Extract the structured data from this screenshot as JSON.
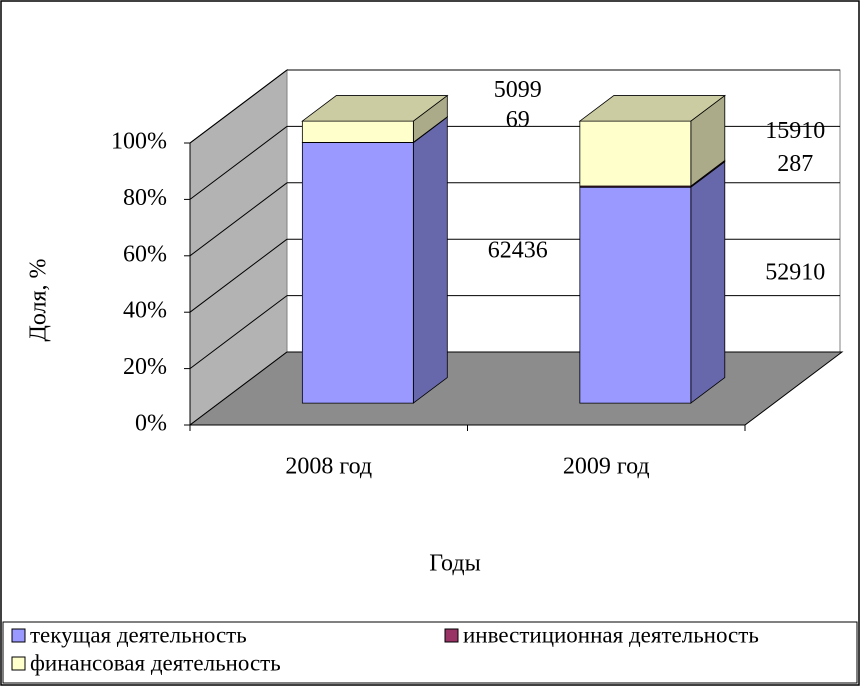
{
  "chart_data": {
    "type": "bar",
    "stacking": "percent",
    "categories": [
      "2008 год",
      "2009 год"
    ],
    "series": [
      {
        "name": "текущая деятельность",
        "color": "#9999ff",
        "values": [
          62436,
          52910
        ]
      },
      {
        "name": "инвестиционная деятельность",
        "color": "#993366",
        "values": [
          69,
          287
        ]
      },
      {
        "name": "финансовая деятельность",
        "color": "#ffffcc",
        "values": [
          5099,
          15910
        ]
      }
    ],
    "ylim": [
      0,
      100
    ],
    "yticks": [
      {
        "value": 0,
        "label": "0%"
      },
      {
        "value": 20,
        "label": "20%"
      },
      {
        "value": 40,
        "label": "40%"
      },
      {
        "value": 60,
        "label": "60%"
      },
      {
        "value": 80,
        "label": "80%"
      },
      {
        "value": 100,
        "label": "100%"
      }
    ],
    "y_label": "Доля, %",
    "x_label": "Годы",
    "grid": true,
    "legend": "bottom"
  }
}
